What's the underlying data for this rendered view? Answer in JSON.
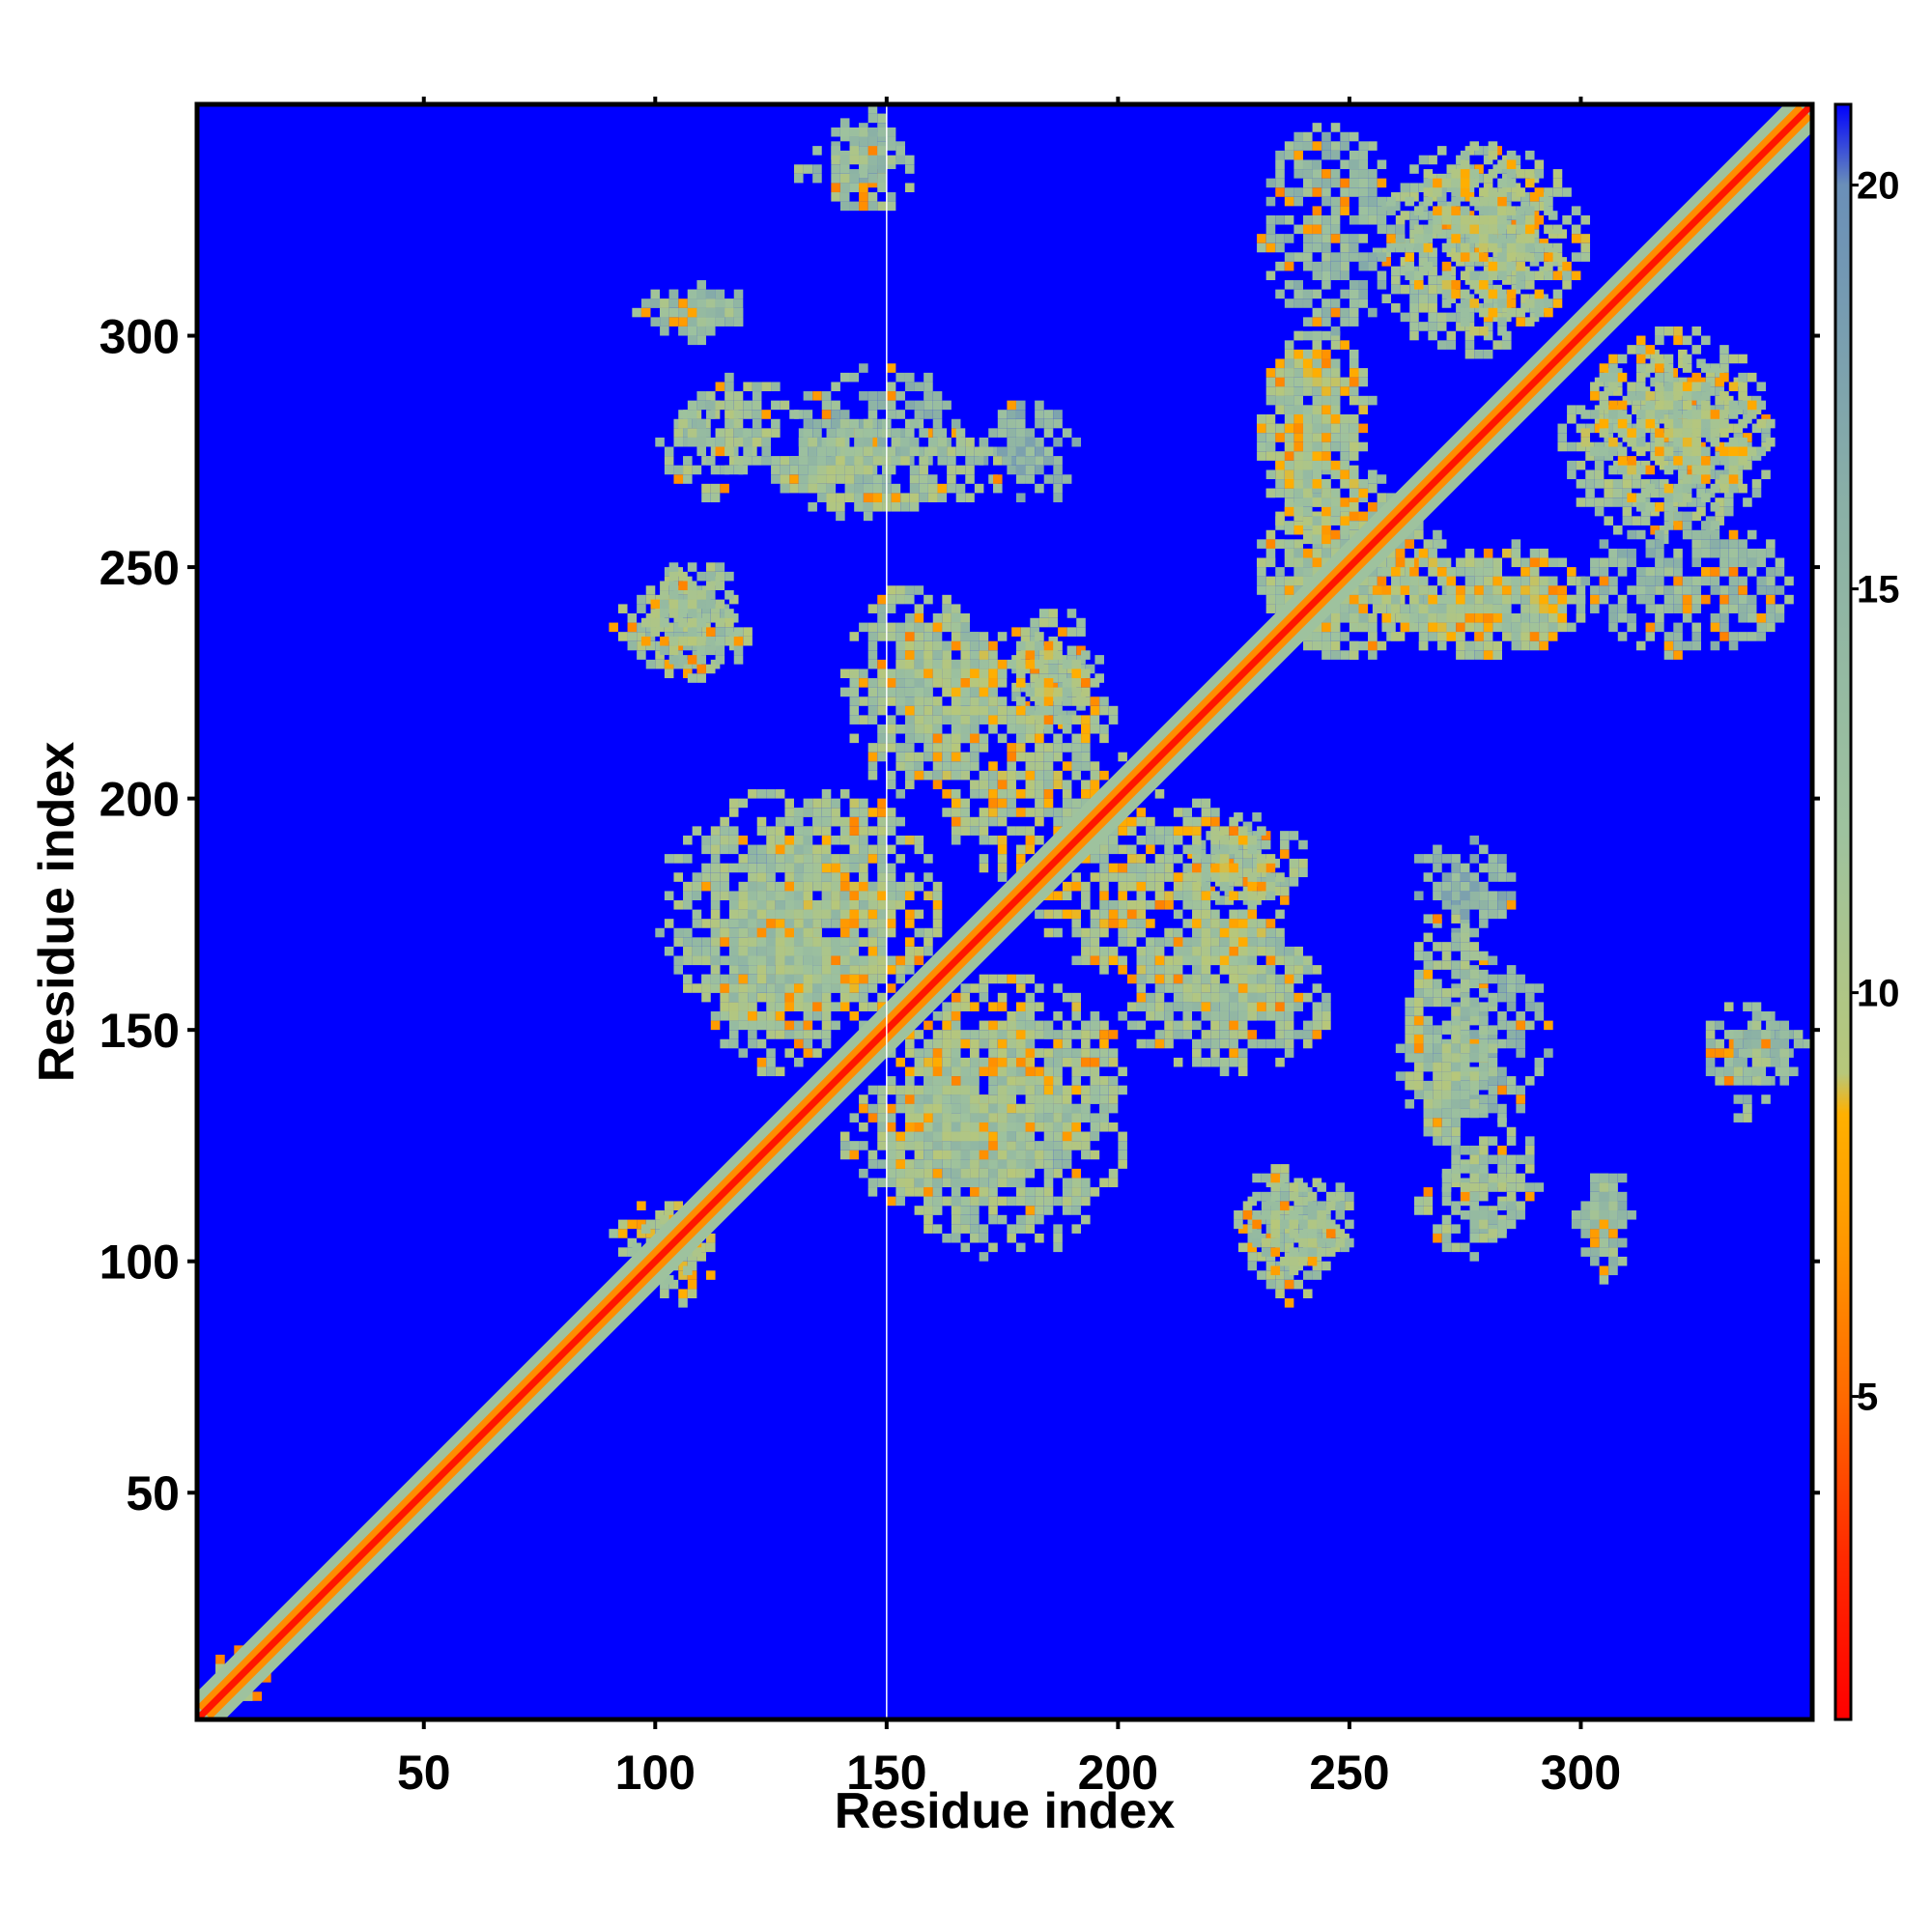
{
  "chart_data": {
    "type": "heatmap",
    "title": "",
    "xlabel": "Residue index",
    "ylabel": "Residue index",
    "xlim": [
      1,
      350
    ],
    "ylim": [
      1,
      350
    ],
    "xticks": [
      50,
      100,
      150,
      200,
      250,
      300
    ],
    "yticks": [
      50,
      100,
      150,
      200,
      250,
      300
    ],
    "colorbar": {
      "range": [
        1,
        21
      ],
      "ticks": [
        5,
        10,
        15,
        20
      ],
      "stops": [
        {
          "value": 1,
          "color": "#ff0000"
        },
        {
          "value": 3,
          "color": "#ff2a00"
        },
        {
          "value": 5,
          "color": "#ff6a00"
        },
        {
          "value": 7,
          "color": "#ff9900"
        },
        {
          "value": 8.5,
          "color": "#ffb000"
        },
        {
          "value": 9,
          "color": "#b7c77a"
        },
        {
          "value": 12,
          "color": "#9ec29e"
        },
        {
          "value": 16,
          "color": "#8ab0a6"
        },
        {
          "value": 20,
          "color": "#6a8fb8"
        },
        {
          "value": 21,
          "color": "#0000ff"
        }
      ]
    },
    "background_color": "#0000ff",
    "diagonal": {
      "width_residues": 3,
      "value": 2
    },
    "vertical_marker_x": 150,
    "contact_regions": [
      {
        "x": [
          138,
          152
        ],
        "y": [
          330,
          348
        ],
        "value": 14
      },
      {
        "x": [
          97,
          118
        ],
        "y": [
          298,
          310
        ],
        "value": 14
      },
      {
        "x": [
          100,
          120
        ],
        "y": [
          264,
          285
        ],
        "value": 12
      },
      {
        "x": [
          125,
          150
        ],
        "y": [
          260,
          280
        ],
        "value": 12
      },
      {
        "x": [
          130,
          165
        ],
        "y": [
          270,
          292
        ],
        "value": 14
      },
      {
        "x": [
          170,
          190
        ],
        "y": [
          262,
          285
        ],
        "value": 15
      },
      {
        "x": [
          90,
          118
        ],
        "y": [
          226,
          248
        ],
        "value": 12
      },
      {
        "x": [
          150,
          175
        ],
        "y": [
          210,
          240
        ],
        "value": 12
      },
      {
        "x": [
          175,
          195
        ],
        "y": [
          215,
          240
        ],
        "value": 12
      },
      {
        "x": [
          120,
          160
        ],
        "y": [
          150,
          200
        ],
        "value": 11
      },
      {
        "x": [
          110,
          140
        ],
        "y": [
          140,
          180
        ],
        "value": 12
      },
      {
        "x": [
          180,
          235
        ],
        "y": [
          160,
          200
        ],
        "value": 11
      },
      {
        "x": [
          200,
          245
        ],
        "y": [
          140,
          170
        ],
        "value": 12
      },
      {
        "x": [
          150,
          200
        ],
        "y": [
          100,
          150
        ],
        "value": 12
      },
      {
        "x": [
          225,
          250
        ],
        "y": [
          95,
          120
        ],
        "value": 12
      },
      {
        "x": [
          260,
          280
        ],
        "y": [
          125,
          175
        ],
        "value": 12
      },
      {
        "x": [
          270,
          290
        ],
        "y": [
          105,
          130
        ],
        "value": 12
      },
      {
        "x": [
          300,
          310
        ],
        "y": [
          95,
          120
        ],
        "value": 13
      },
      {
        "x": [
          325,
          345
        ],
        "y": [
          130,
          155
        ],
        "value": 13
      },
      {
        "x": [
          230,
          270
        ],
        "y": [
          230,
          265
        ],
        "value": 12
      },
      {
        "x": [
          230,
          255
        ],
        "y": [
          255,
          300
        ],
        "value": 11
      },
      {
        "x": [
          255,
          300
        ],
        "y": [
          230,
          250
        ],
        "value": 11
      },
      {
        "x": [
          295,
          340
        ],
        "y": [
          255,
          295
        ],
        "value": 12
      },
      {
        "x": [
          260,
          300
        ],
        "y": [
          300,
          340
        ],
        "value": 11
      },
      {
        "x": [
          230,
          260
        ],
        "y": [
          300,
          345
        ],
        "value": 14
      },
      {
        "x": [
          90,
          110
        ],
        "y": [
          95,
          112
        ],
        "value": 10
      },
      {
        "x": [
          3,
          15
        ],
        "y": [
          3,
          15
        ],
        "value": 8
      }
    ]
  }
}
